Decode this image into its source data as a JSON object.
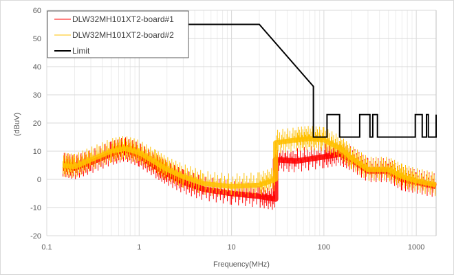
{
  "chart_data": {
    "type": "line",
    "title": "",
    "xlabel": "Frequency(MHz)",
    "ylabel": "(dBuV)",
    "xscale": "log",
    "xlim": [
      0.1,
      1640
    ],
    "ylim": [
      -20,
      60
    ],
    "xticks": [
      {
        "v": 0.1,
        "label": "0.1"
      },
      {
        "v": 1,
        "label": "1"
      },
      {
        "v": 10,
        "label": "10"
      },
      {
        "v": 100,
        "label": "100"
      },
      {
        "v": 1000,
        "label": "1000"
      }
    ],
    "yticks": [
      {
        "v": -20,
        "label": "-20"
      },
      {
        "v": -10,
        "label": "-10"
      },
      {
        "v": 0,
        "label": "0"
      },
      {
        "v": 10,
        "label": "10"
      },
      {
        "v": 20,
        "label": "20"
      },
      {
        "v": 30,
        "label": "30"
      },
      {
        "v": 40,
        "label": "40"
      },
      {
        "v": 50,
        "label": "50"
      },
      {
        "v": 60,
        "label": "60"
      }
    ],
    "grid": true,
    "legend_position": "top-left",
    "series": [
      {
        "name": "DLW32MH101XT2-board#1",
        "color": "#ff0000",
        "band": true,
        "points": [
          [
            0.15,
            5
          ],
          [
            0.2,
            4
          ],
          [
            0.3,
            6
          ],
          [
            0.5,
            9
          ],
          [
            0.7,
            10.5
          ],
          [
            1,
            8.5
          ],
          [
            1.5,
            4.5
          ],
          [
            2,
            2
          ],
          [
            3,
            -1
          ],
          [
            5,
            -3.5
          ],
          [
            10,
            -5
          ],
          [
            20,
            -6
          ],
          [
            30,
            -7
          ],
          [
            30,
            7
          ],
          [
            50,
            6.5
          ],
          [
            100,
            8
          ],
          [
            150,
            9
          ],
          [
            200,
            7
          ],
          [
            300,
            3
          ],
          [
            500,
            3
          ],
          [
            700,
            0
          ],
          [
            1000,
            -1
          ],
          [
            1640,
            -2.5
          ]
        ]
      },
      {
        "name": "DLW32MH101XT2-board#2",
        "color": "#ffc000",
        "band": true,
        "points": [
          [
            0.15,
            5
          ],
          [
            0.2,
            4.5
          ],
          [
            0.3,
            7
          ],
          [
            0.5,
            10
          ],
          [
            0.7,
            11
          ],
          [
            1,
            9.5
          ],
          [
            1.5,
            6
          ],
          [
            2,
            3.5
          ],
          [
            3,
            1
          ],
          [
            5,
            -1.5
          ],
          [
            10,
            -2.5
          ],
          [
            20,
            -2
          ],
          [
            30,
            0
          ],
          [
            30,
            13
          ],
          [
            50,
            14
          ],
          [
            70,
            14.5
          ],
          [
            100,
            14
          ],
          [
            150,
            11
          ],
          [
            200,
            7.5
          ],
          [
            300,
            3.5
          ],
          [
            500,
            3.5
          ],
          [
            700,
            1
          ],
          [
            1000,
            -0.5
          ],
          [
            1640,
            -2
          ]
        ]
      },
      {
        "name": "Limit",
        "color": "#000000",
        "band": false,
        "points": [
          [
            0.15,
            55
          ],
          [
            20,
            55
          ],
          [
            77,
            33
          ],
          [
            77,
            15
          ],
          [
            108,
            15
          ],
          [
            108,
            23
          ],
          [
            148,
            23
          ],
          [
            148,
            15
          ],
          [
            244,
            15
          ],
          [
            244,
            23
          ],
          [
            315,
            23
          ],
          [
            315,
            15
          ],
          [
            338,
            15
          ],
          [
            338,
            23
          ],
          [
            380,
            23
          ],
          [
            380,
            15
          ],
          [
            975,
            15
          ],
          [
            975,
            23
          ],
          [
            1160,
            23
          ],
          [
            1160,
            15
          ],
          [
            1290,
            15
          ],
          [
            1290,
            23
          ],
          [
            1350,
            23
          ],
          [
            1350,
            15
          ],
          [
            1640,
            15
          ],
          [
            1640,
            23
          ]
        ]
      }
    ]
  }
}
